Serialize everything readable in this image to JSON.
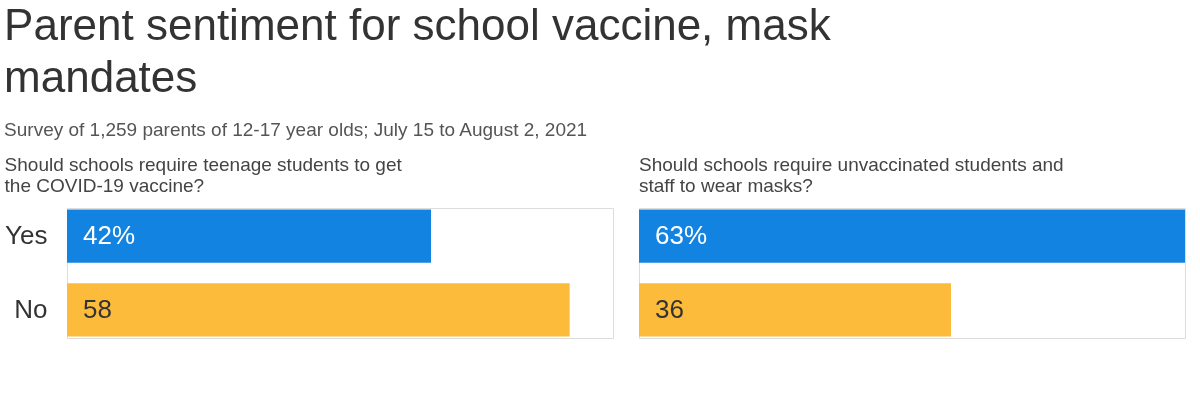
{
  "chart_data": [
    {
      "type": "other",
      "title": "Parent sentiment for school vaccine, mask mandates",
      "subtitle": "Survey of 1,259 parents of 12-17 year olds; July 15 to August 2, 2021"
    },
    {
      "type": "bar",
      "orientation": "horizontal",
      "title": "Should schools require teenage students to get the COVID-19 vaccine?",
      "categories": [
        "Yes",
        "No"
      ],
      "values": [
        42,
        58
      ],
      "colors": [
        "#1283e0",
        "#fdbb3b"
      ],
      "value_labels": [
        "42%",
        "58"
      ],
      "tick_labels": "y"
    },
    {
      "type": "bar",
      "orientation": "horizontal",
      "title": "Should schools require unvaccinated students and staff to wear masks?",
      "categories": [
        null,
        null
      ],
      "values": [
        63,
        36
      ],
      "colors": [
        "#1283e0",
        "#fdbb3b"
      ],
      "value_labels": [
        "63%",
        "36"
      ],
      "tick_labels": false
    }
  ]
}
